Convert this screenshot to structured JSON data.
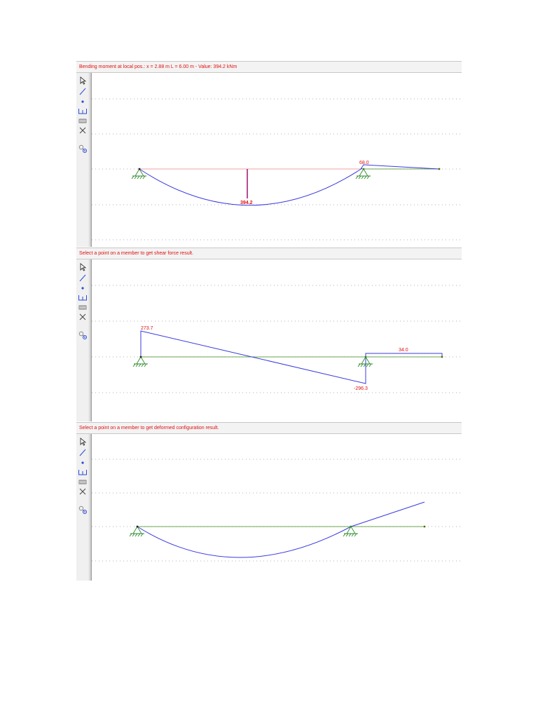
{
  "panels": [
    {
      "id": "moment",
      "status_text": "Bending moment at local pos.: x = 2.88 m  L = 6.00 m  -  Value: 394.2 kNm",
      "labels": {
        "support_peak": "68.0",
        "span_max": "394.2"
      }
    },
    {
      "id": "shear",
      "status_text": "Select a point on a member to get shear force result.",
      "labels": {
        "left_end": "273.7",
        "right_support": "-296.3",
        "overhang": "34.0"
      }
    },
    {
      "id": "deflection",
      "status_text": "Select a point on a member to get deformed configuration result."
    }
  ],
  "tools": [
    "select-pointer-icon",
    "line-member-icon",
    "node-point-icon",
    "support-icon",
    "load-icon",
    "delete-icon",
    "result-probe-icon"
  ],
  "colors": {
    "status_text": "#e01010",
    "result_curve": "#3a3ae0",
    "beam": "#3a8a1a",
    "support": "#2a8a2a",
    "moment_baseline": "#f0a0a0",
    "max_marker": "#a0106a"
  }
}
